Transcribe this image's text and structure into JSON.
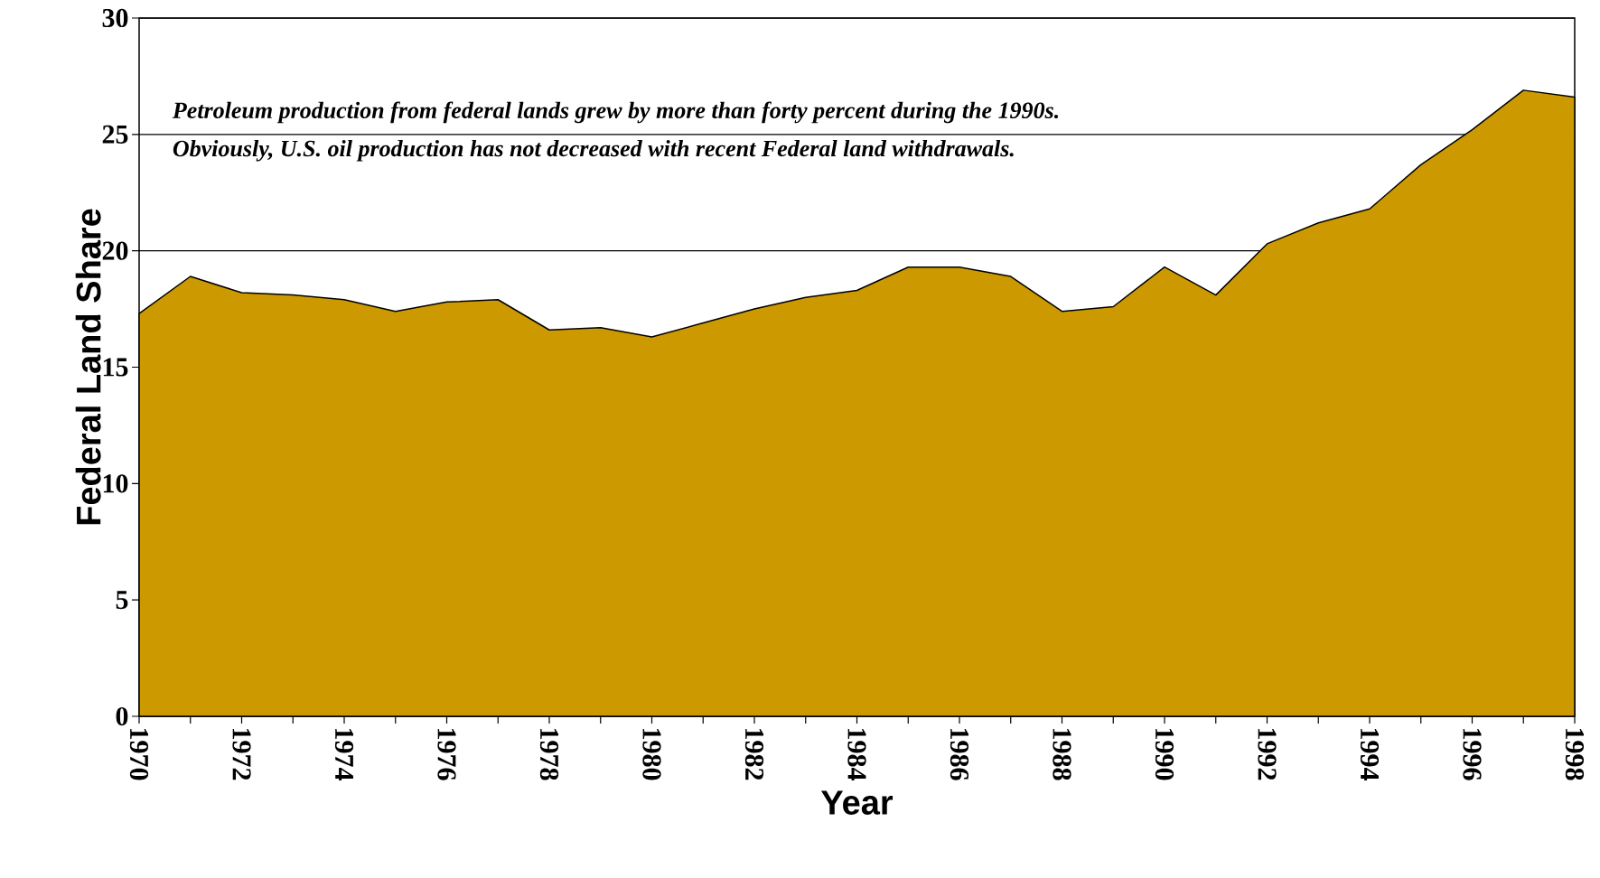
{
  "chart_data": {
    "type": "area",
    "xlabel": "Year",
    "ylabel": "Federal Land Share",
    "annotations": [
      "Petroleum production from federal lands grew by more than forty percent during the 1990s.",
      "Obviously, U.S. oil production has not decreased with recent Federal land withdrawals."
    ],
    "x": [
      1970,
      1971,
      1972,
      1973,
      1974,
      1975,
      1976,
      1977,
      1978,
      1979,
      1980,
      1981,
      1982,
      1983,
      1984,
      1985,
      1986,
      1987,
      1988,
      1989,
      1990,
      1991,
      1992,
      1993,
      1994,
      1995,
      1996,
      1997,
      1998
    ],
    "series": [
      {
        "color": "#cc9900",
        "values": [
          17.3,
          18.9,
          18.2,
          18.1,
          17.9,
          17.4,
          17.8,
          17.9,
          16.6,
          16.7,
          16.3,
          16.9,
          17.5,
          18.0,
          18.3,
          19.3,
          19.3,
          18.9,
          17.4,
          17.6,
          19.3,
          18.1,
          20.3,
          21.2,
          21.8,
          23.7,
          25.2,
          26.9,
          26.6
        ]
      }
    ],
    "xlim": [
      1970,
      1998
    ],
    "xticks": [
      1970,
      {
        "value": 1971,
        "label": null
      },
      1972,
      {
        "value": 1973,
        "label": null
      },
      1974,
      {
        "value": 1975,
        "label": null
      },
      1976,
      {
        "value": 1977,
        "label": null
      },
      1978,
      {
        "value": 1979,
        "label": null
      },
      1980,
      {
        "value": 1981,
        "label": null
      },
      1982,
      {
        "value": 1983,
        "label": null
      },
      1984,
      {
        "value": 1985,
        "label": null
      },
      1986,
      {
        "value": 1987,
        "label": null
      },
      1988,
      {
        "value": 1989,
        "label": null
      },
      1990,
      {
        "value": 1991,
        "label": null
      },
      1992,
      {
        "value": 1993,
        "label": null
      },
      1994,
      {
        "value": 1995,
        "label": null
      },
      1996,
      {
        "value": 1997,
        "label": null
      },
      1998
    ],
    "ylim": [
      0,
      30
    ],
    "yticks": [
      0,
      5,
      10,
      15,
      20,
      25,
      30
    ],
    "grid": "y"
  }
}
